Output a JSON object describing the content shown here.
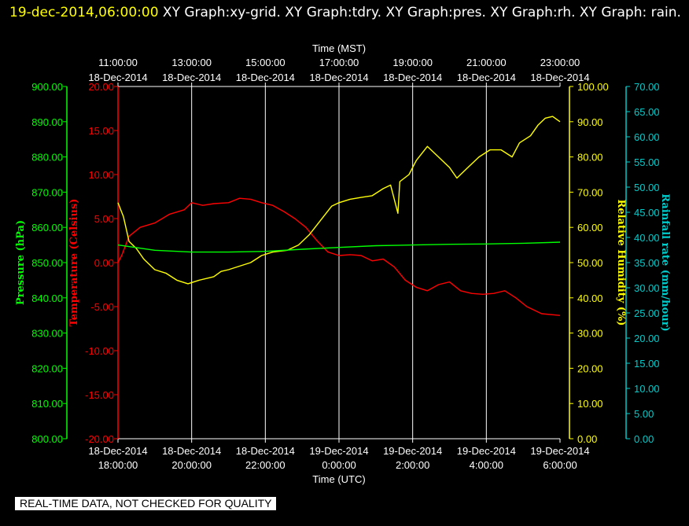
{
  "header": {
    "timestamp": "19-dec-2014,06:00:00",
    "graphs": "  XY Graph:xy-grid.  XY Graph:tdry.  XY Graph:pres.  XY Graph:rh.  XY Graph: rain."
  },
  "disclaimer": "REAL-TIME DATA, NOT CHECKED FOR QUALITY",
  "colors": {
    "background": "#000000",
    "grid": "#ffffff",
    "pressure": "#00ff00",
    "temperature": "#ff0000",
    "humidity": "#ffff00",
    "rain": "#00cccc"
  },
  "chart_data": {
    "type": "line",
    "grid": true,
    "x_top": {
      "label": "Time (MST)",
      "ticks": [
        [
          "11:00:00",
          "18-Dec-2014"
        ],
        [
          "13:00:00",
          "18-Dec-2014"
        ],
        [
          "15:00:00",
          "18-Dec-2014"
        ],
        [
          "17:00:00",
          "18-Dec-2014"
        ],
        [
          "19:00:00",
          "18-Dec-2014"
        ],
        [
          "21:00:00",
          "18-Dec-2014"
        ],
        [
          "23:00:00",
          "18-Dec-2014"
        ]
      ]
    },
    "x_bottom": {
      "label": "Time (UTC)",
      "ticks": [
        [
          "18-Dec-2014",
          "18:00:00"
        ],
        [
          "18-Dec-2014",
          "20:00:00"
        ],
        [
          "18-Dec-2014",
          "22:00:00"
        ],
        [
          "19-Dec-2014",
          "0:00:00"
        ],
        [
          "19-Dec-2014",
          "2:00:00"
        ],
        [
          "19-Dec-2014",
          "4:00:00"
        ],
        [
          "19-Dec-2014",
          "6:00:00"
        ]
      ]
    },
    "axes": {
      "pressure": {
        "label": "Pressure (hPa)",
        "min": 800,
        "max": 900,
        "step": 10,
        "ticks": [
          "800.00",
          "810.00",
          "820.00",
          "830.00",
          "840.00",
          "850.00",
          "860.00",
          "870.00",
          "880.00",
          "890.00",
          "900.00"
        ]
      },
      "temperature": {
        "label": "Temperature (Celsius)",
        "min": -20,
        "max": 20,
        "step": 5,
        "ticks": [
          "-20.00",
          "-15.00",
          "-10.00",
          "-5.00",
          "0.00",
          "5.00",
          "10.00",
          "15.00",
          "20.00"
        ]
      },
      "humidity": {
        "label": "Relative Humidity (%)",
        "min": 0,
        "max": 100,
        "step": 10,
        "ticks": [
          "0.00",
          "10.00",
          "20.00",
          "30.00",
          "40.00",
          "50.00",
          "60.00",
          "70.00",
          "80.00",
          "90.00",
          "100.00"
        ]
      },
      "rain": {
        "label": "Rainfall rate (mm/hour)",
        "min": 0,
        "max": 70,
        "step": 5,
        "ticks": [
          "0.00",
          "5.00",
          "10.00",
          "15.00",
          "20.00",
          "25.00",
          "30.00",
          "35.00",
          "40.00",
          "45.00",
          "50.00",
          "55.00",
          "60.00",
          "65.00",
          "70.00"
        ]
      }
    },
    "x_unit": "hours since 18-Dec-2014 18:00:00 UTC",
    "x_range": [
      0,
      12
    ],
    "series": [
      {
        "axis": "temperature",
        "color": "#ff0000",
        "points": [
          [
            0,
            0
          ],
          [
            0.1,
            0.8
          ],
          [
            0.3,
            3
          ],
          [
            0.6,
            4
          ],
          [
            1.0,
            4.5
          ],
          [
            1.4,
            5.5
          ],
          [
            1.8,
            6
          ],
          [
            2.0,
            6.8
          ],
          [
            2.3,
            6.5
          ],
          [
            2.6,
            6.7
          ],
          [
            3.0,
            6.8
          ],
          [
            3.3,
            7.3
          ],
          [
            3.6,
            7.2
          ],
          [
            3.9,
            6.8
          ],
          [
            4.2,
            6.5
          ],
          [
            4.5,
            5.8
          ],
          [
            4.8,
            5
          ],
          [
            5.1,
            4
          ],
          [
            5.4,
            2.5
          ],
          [
            5.7,
            1.2
          ],
          [
            6.0,
            0.8
          ],
          [
            6.3,
            0.9
          ],
          [
            6.6,
            0.8
          ],
          [
            6.9,
            0.2
          ],
          [
            7.2,
            0.4
          ],
          [
            7.5,
            -0.5
          ],
          [
            7.8,
            -2
          ],
          [
            8.1,
            -2.8
          ],
          [
            8.4,
            -3.2
          ],
          [
            8.7,
            -2.5
          ],
          [
            9.0,
            -2.2
          ],
          [
            9.3,
            -3.2
          ],
          [
            9.6,
            -3.5
          ],
          [
            9.9,
            -3.6
          ],
          [
            10.2,
            -3.5
          ],
          [
            10.5,
            -3.2
          ],
          [
            10.8,
            -4
          ],
          [
            11.1,
            -5
          ],
          [
            11.5,
            -5.8
          ],
          [
            12.0,
            -6
          ]
        ]
      },
      {
        "axis": "humidity",
        "color": "#ffff00",
        "points": [
          [
            0,
            67
          ],
          [
            0.15,
            63
          ],
          [
            0.3,
            56
          ],
          [
            0.5,
            54
          ],
          [
            0.7,
            51
          ],
          [
            1.0,
            48
          ],
          [
            1.3,
            47
          ],
          [
            1.6,
            45
          ],
          [
            1.9,
            44
          ],
          [
            2.2,
            45
          ],
          [
            2.6,
            46
          ],
          [
            2.8,
            47.5
          ],
          [
            3.0,
            48
          ],
          [
            3.3,
            49
          ],
          [
            3.6,
            50
          ],
          [
            3.9,
            52
          ],
          [
            4.2,
            53
          ],
          [
            4.6,
            53.5
          ],
          [
            4.9,
            55
          ],
          [
            5.2,
            58
          ],
          [
            5.5,
            62
          ],
          [
            5.8,
            66
          ],
          [
            6.0,
            67
          ],
          [
            6.3,
            68
          ],
          [
            6.6,
            68.5
          ],
          [
            6.9,
            69
          ],
          [
            7.2,
            71
          ],
          [
            7.4,
            72
          ],
          [
            7.6,
            64
          ],
          [
            7.65,
            73
          ],
          [
            7.9,
            75
          ],
          [
            8.1,
            79
          ],
          [
            8.4,
            83
          ],
          [
            8.7,
            80
          ],
          [
            9.0,
            77
          ],
          [
            9.2,
            74
          ],
          [
            9.5,
            77
          ],
          [
            9.8,
            80
          ],
          [
            10.1,
            82
          ],
          [
            10.4,
            82
          ],
          [
            10.7,
            80
          ],
          [
            10.9,
            84
          ],
          [
            11.2,
            86
          ],
          [
            11.4,
            89
          ],
          [
            11.6,
            91
          ],
          [
            11.8,
            91.5
          ],
          [
            12.0,
            90
          ]
        ]
      },
      {
        "axis": "pressure",
        "color": "#00ff00",
        "points": [
          [
            0,
            855
          ],
          [
            1.0,
            853.5
          ],
          [
            2.0,
            853
          ],
          [
            3.0,
            853
          ],
          [
            4.0,
            853.2
          ],
          [
            5.0,
            853.8
          ],
          [
            6.0,
            854.3
          ],
          [
            7.0,
            854.8
          ],
          [
            8.0,
            855
          ],
          [
            9.0,
            855.2
          ],
          [
            10.0,
            855.3
          ],
          [
            11.0,
            855.5
          ],
          [
            12.0,
            855.8
          ]
        ]
      }
    ]
  }
}
